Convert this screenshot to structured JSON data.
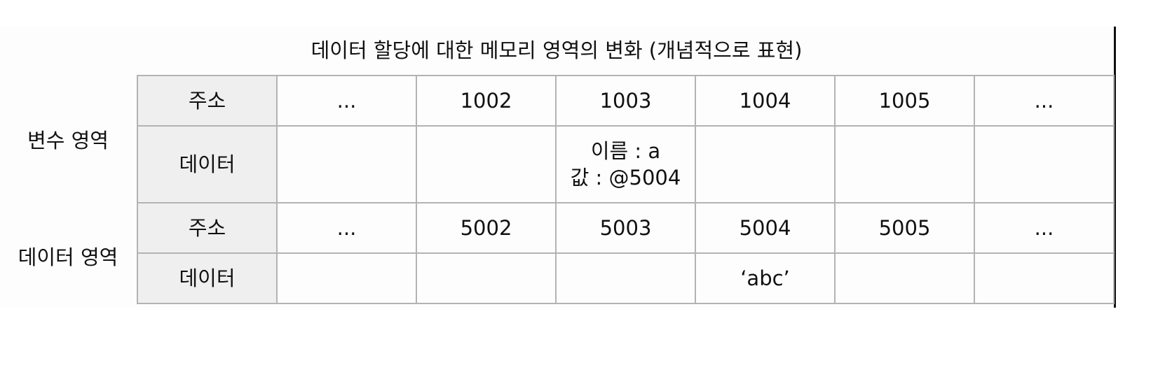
{
  "title": "데이터 할당에 대한 메모리 영역의 변화 (개념적으로 표현)",
  "regions": [
    {
      "label": "변수 영역",
      "address_row": {
        "header": "주소",
        "cells": [
          "...",
          "1002",
          "1003",
          "1004",
          "1005",
          "..."
        ]
      },
      "data_row": {
        "header": "데이터",
        "cells": [
          [
            ""
          ],
          [
            ""
          ],
          [
            "이름 : a",
            "값 : @5004"
          ],
          [
            ""
          ],
          [
            ""
          ],
          [
            ""
          ]
        ]
      }
    },
    {
      "label": "데이터 영역",
      "address_row": {
        "header": "주소",
        "cells": [
          "...",
          "5002",
          "5003",
          "5004",
          "5005",
          "..."
        ]
      },
      "data_row": {
        "header": "데이터",
        "cells": [
          [
            ""
          ],
          [
            ""
          ],
          [
            ""
          ],
          [
            "‘abc’"
          ],
          [
            ""
          ],
          [
            ""
          ]
        ]
      }
    }
  ],
  "colors": {
    "header_background": "#efefef",
    "grid_line": "#b3b3b3",
    "text": "#111111"
  }
}
